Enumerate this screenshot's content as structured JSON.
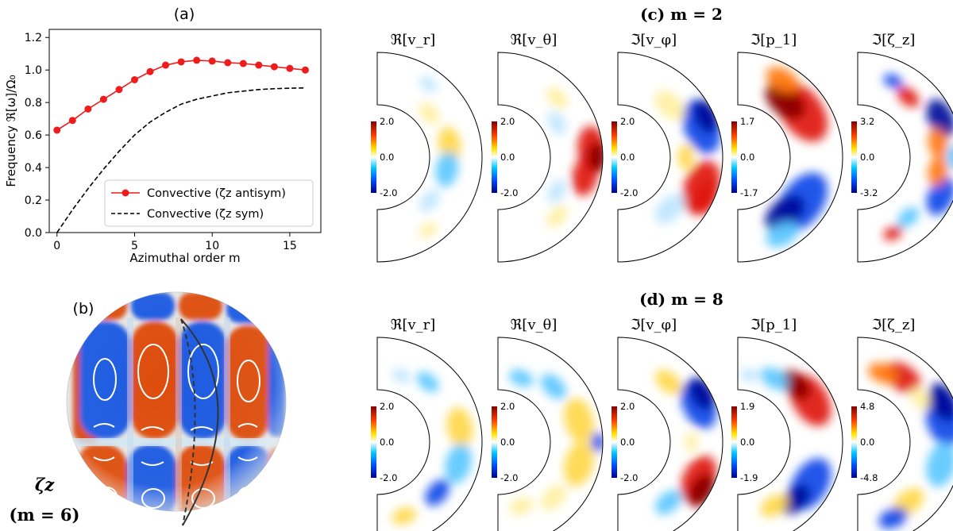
{
  "panel_a": {
    "label": "(a)",
    "chart_data": {
      "type": "line",
      "xlabel": "Azimuthal order m",
      "ylabel": "Frequency ℜ[ω]/Ω₀",
      "xlim": [
        -0.5,
        17
      ],
      "ylim": [
        0.0,
        1.25
      ],
      "xticks": [
        0,
        5,
        10,
        15
      ],
      "xtick_labels": [
        "0",
        "5",
        "10",
        "15"
      ],
      "yticks": [
        0.0,
        0.2,
        0.4,
        0.6,
        0.8,
        1.0,
        1.2
      ],
      "ytick_labels": [
        "0.0",
        "0.2",
        "0.4",
        "0.6",
        "0.8",
        "1.0",
        "1.2"
      ],
      "legend_position": "lower-right",
      "grid": false,
      "series": [
        {
          "name": "Convective (ζz antisym)",
          "color": "#ee1c1c",
          "style": "solid-markers",
          "x": [
            0,
            1,
            2,
            3,
            4,
            5,
            6,
            7,
            8,
            9,
            10,
            11,
            12,
            13,
            14,
            15,
            16
          ],
          "y": [
            0.63,
            0.69,
            0.76,
            0.82,
            0.88,
            0.94,
            0.99,
            1.03,
            1.05,
            1.06,
            1.055,
            1.045,
            1.04,
            1.03,
            1.02,
            1.01,
            1.0
          ]
        },
        {
          "name": "Convective (ζz sym)",
          "color": "#000000",
          "style": "dashed",
          "x": [
            0,
            1,
            2,
            3,
            4,
            5,
            6,
            7,
            8,
            9,
            10,
            11,
            12,
            13,
            14,
            15,
            16
          ],
          "y": [
            0.0,
            0.14,
            0.27,
            0.39,
            0.5,
            0.6,
            0.68,
            0.74,
            0.79,
            0.82,
            0.84,
            0.86,
            0.87,
            0.88,
            0.885,
            0.888,
            0.89
          ]
        }
      ]
    }
  },
  "panel_b": {
    "label": "(b)",
    "caption_symbol": "ζz",
    "caption_m": "(m = 6)"
  },
  "panel_c": {
    "title": "(c) m = 2",
    "fields": [
      {
        "label": "ℜ[v_r]",
        "max": "2.0",
        "mid": "0.0",
        "min": "-2.0"
      },
      {
        "label": "ℜ[v_θ]",
        "max": "2.0",
        "mid": "0.0",
        "min": "-2.0"
      },
      {
        "label": "ℑ[v_φ]",
        "max": "2.0",
        "mid": "0.0",
        "min": "-2.0"
      },
      {
        "label": "ℑ[p_1]",
        "max": "1.7",
        "mid": "0.0",
        "min": "-1.7"
      },
      {
        "label": "ℑ[ζ_z]",
        "max": "3.2",
        "mid": "0.0",
        "min": "-3.2"
      }
    ]
  },
  "panel_d": {
    "title": "(d) m = 8",
    "fields": [
      {
        "label": "ℜ[v_r]",
        "max": "2.0",
        "mid": "0.0",
        "min": "-2.0"
      },
      {
        "label": "ℜ[v_θ]",
        "max": "2.0",
        "mid": "0.0",
        "min": "-2.0"
      },
      {
        "label": "ℑ[v_φ]",
        "max": "2.0",
        "mid": "0.0",
        "min": "-2.0"
      },
      {
        "label": "ℑ[p_1]",
        "max": "1.9",
        "mid": "0.0",
        "min": "-1.9"
      },
      {
        "label": "ℑ[ζ_z]",
        "max": "4.8",
        "mid": "0.0",
        "min": "-4.8"
      }
    ]
  }
}
